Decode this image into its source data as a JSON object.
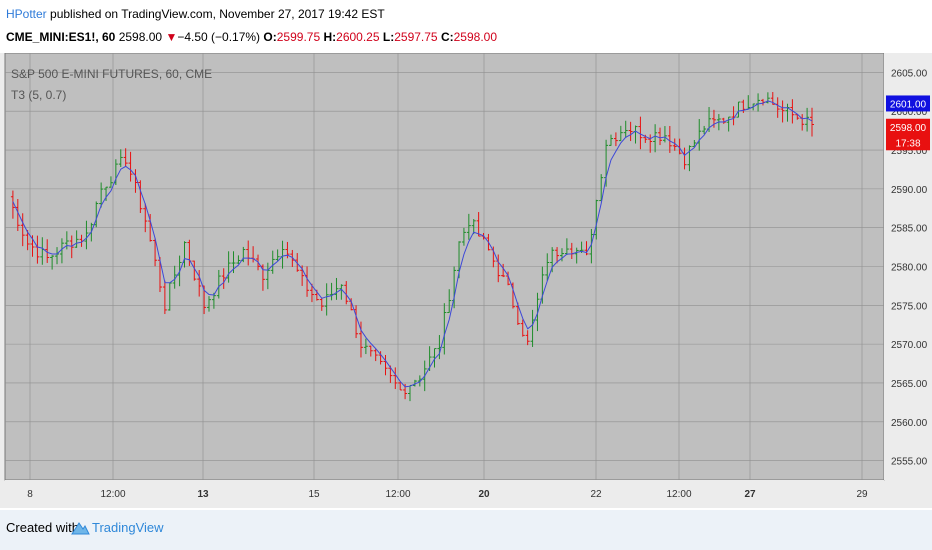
{
  "header": {
    "author": "HPotter",
    "published_text": "published on TradingView.com, November 27, 2017 19:42 EST",
    "symbol": "CME_MINI:ES1!, 60",
    "last": "2598.00",
    "change_arrow": "▼",
    "change": "−4.50 (−0.17%)",
    "o_label": "O:",
    "o_value": "2599.75",
    "h_label": "H:",
    "h_value": "2600.25",
    "l_label": "L:",
    "l_value": "2597.75",
    "c_label": "C:",
    "c_value": "2598.00"
  },
  "chart_data": {
    "type": "ohlc",
    "title": "S&P 500 E-MINI FUTURES, 60, CME",
    "indicator": "T3 (5, 0.7)",
    "ylim": [
      2552.5,
      2607.5
    ],
    "y_ticks": [
      2555,
      2560,
      2565,
      2570,
      2575,
      2580,
      2585,
      2590,
      2595,
      2600,
      2605
    ],
    "y_tick_labels": [
      "2555.00",
      "2560.00",
      "2565.00",
      "2570.00",
      "2575.00",
      "2580.00",
      "2585.00",
      "2590.00",
      "2595.00",
      "2600.00",
      "2605.00"
    ],
    "x_tick_labels": [
      "8",
      "12:00",
      "13",
      "15",
      "12:00",
      "20",
      "22",
      "12:00",
      "27",
      "29"
    ],
    "x_tick_bold": [
      false,
      false,
      true,
      false,
      false,
      true,
      false,
      false,
      true,
      false
    ],
    "bar_count": 150,
    "price_labels": [
      {
        "text": "2601.00",
        "value": 2601.0,
        "color": "#1010e0"
      },
      {
        "text": "2598.00",
        "value": 2598.0,
        "color": "#e81010"
      },
      {
        "text": "17:38",
        "value": 2596.0,
        "color": "#e81010"
      }
    ],
    "close_anchors": [
      [
        0,
        2589
      ],
      [
        4,
        2583
      ],
      [
        8,
        2581
      ],
      [
        12,
        2583
      ],
      [
        16,
        2584
      ],
      [
        19,
        2590
      ],
      [
        24,
        2594
      ],
      [
        28,
        2586
      ],
      [
        32,
        2575
      ],
      [
        36,
        2583
      ],
      [
        40,
        2575
      ],
      [
        44,
        2579
      ],
      [
        48,
        2582
      ],
      [
        52,
        2579
      ],
      [
        56,
        2583
      ],
      [
        60,
        2578
      ],
      [
        64,
        2575
      ],
      [
        68,
        2578
      ],
      [
        72,
        2570
      ],
      [
        76,
        2567
      ],
      [
        80,
        2564
      ],
      [
        84,
        2566
      ],
      [
        88,
        2570
      ],
      [
        92,
        2583
      ],
      [
        94,
        2586
      ],
      [
        98,
        2582
      ],
      [
        102,
        2577
      ],
      [
        106,
        2570
      ],
      [
        110,
        2581
      ],
      [
        114,
        2583
      ],
      [
        118,
        2581
      ],
      [
        122,
        2596
      ],
      [
        126,
        2598
      ],
      [
        130,
        2597
      ],
      [
        134,
        2597
      ],
      [
        138,
        2594
      ],
      [
        142,
        2598
      ],
      [
        146,
        2599
      ],
      [
        150,
        2601
      ],
      [
        154,
        2602
      ],
      [
        158,
        2600
      ],
      [
        162,
        2599
      ],
      [
        164,
        2598
      ]
    ],
    "colors": {
      "up": "#1e8c2a",
      "down": "#e81010",
      "t3": "#3d48d8",
      "background": "#bfbfbf",
      "grid": "#8f8f8f"
    }
  },
  "footer": {
    "created_with": "Created with",
    "brand": "TradingView"
  }
}
